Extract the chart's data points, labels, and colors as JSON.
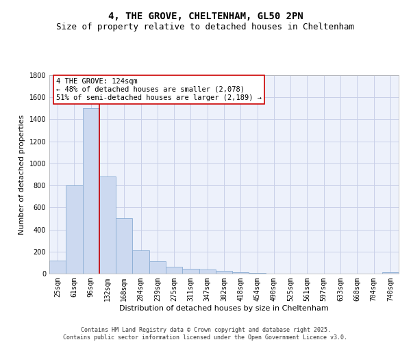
{
  "title": "4, THE GROVE, CHELTENHAM, GL50 2PN",
  "subtitle": "Size of property relative to detached houses in Cheltenham",
  "xlabel": "Distribution of detached houses by size in Cheltenham",
  "ylabel": "Number of detached properties",
  "bar_color": "#ccd9f0",
  "bar_edgecolor": "#8aadd4",
  "background_color": "#edf1fb",
  "grid_color": "#c8cfe8",
  "categories": [
    "25sqm",
    "61sqm",
    "96sqm",
    "132sqm",
    "168sqm",
    "204sqm",
    "239sqm",
    "275sqm",
    "311sqm",
    "347sqm",
    "382sqm",
    "418sqm",
    "454sqm",
    "490sqm",
    "525sqm",
    "561sqm",
    "597sqm",
    "633sqm",
    "668sqm",
    "704sqm",
    "740sqm"
  ],
  "values": [
    120,
    800,
    1500,
    880,
    500,
    210,
    110,
    65,
    45,
    35,
    25,
    10,
    5,
    3,
    2,
    1,
    1,
    1,
    1,
    1,
    10
  ],
  "ylim": [
    0,
    1800
  ],
  "yticks": [
    0,
    200,
    400,
    600,
    800,
    1000,
    1200,
    1400,
    1600,
    1800
  ],
  "vline_x": 2.5,
  "vline_color": "#cc0000",
  "annotation_text": "4 THE GROVE: 124sqm\n← 48% of detached houses are smaller (2,078)\n51% of semi-detached houses are larger (2,189) →",
  "footer_text": "Contains HM Land Registry data © Crown copyright and database right 2025.\nContains public sector information licensed under the Open Government Licence v3.0.",
  "title_fontsize": 10,
  "subtitle_fontsize": 9,
  "axis_label_fontsize": 8,
  "tick_fontsize": 7,
  "annotation_fontsize": 7.5,
  "footer_fontsize": 6
}
